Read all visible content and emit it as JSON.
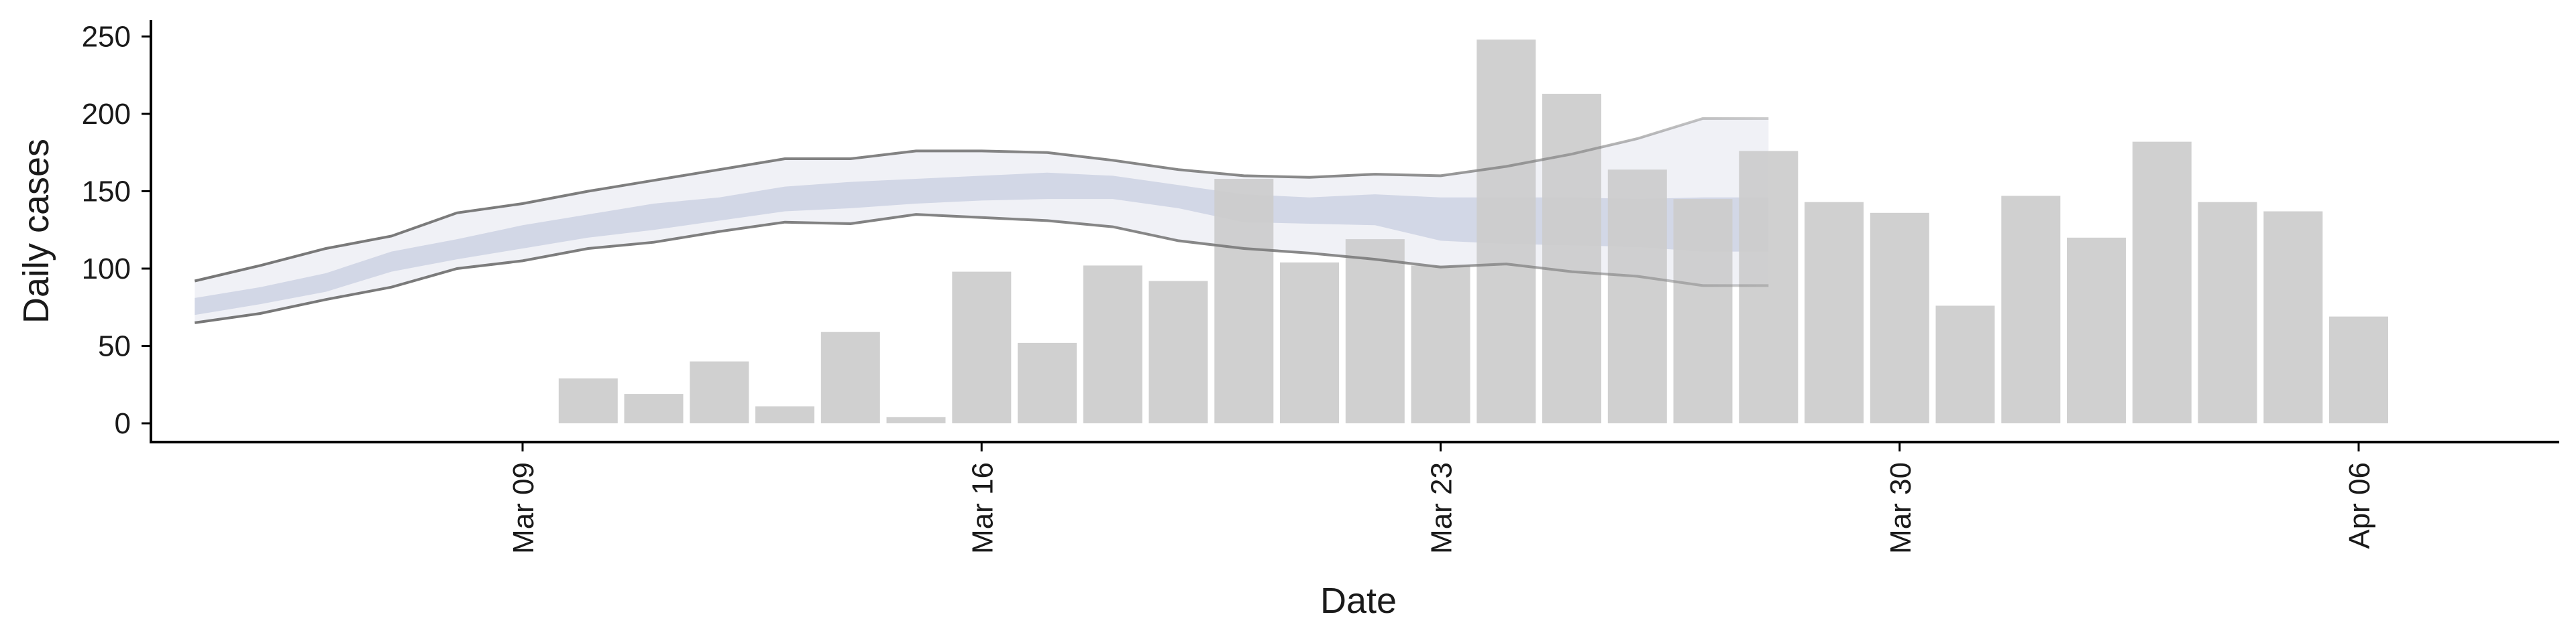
{
  "chart_data": {
    "type": "bar",
    "xlabel": "Date",
    "ylabel": "Daily cases",
    "ylim": [
      0,
      250
    ],
    "y_ticks": [
      0,
      50,
      100,
      150,
      200,
      250
    ],
    "x_ticks": [
      {
        "date": "2020-03-09",
        "label": "Mar 09"
      },
      {
        "date": "2020-03-16",
        "label": "Mar 16"
      },
      {
        "date": "2020-03-23",
        "label": "Mar 23"
      },
      {
        "date": "2020-03-30",
        "label": "Mar 30"
      },
      {
        "date": "2020-04-06",
        "label": "Apr 06"
      }
    ],
    "grid": false,
    "bar_color": "#cccccc",
    "bars": [
      {
        "date": "2020-03-10",
        "value": 29
      },
      {
        "date": "2020-03-11",
        "value": 19
      },
      {
        "date": "2020-03-12",
        "value": 40
      },
      {
        "date": "2020-03-13",
        "value": 11
      },
      {
        "date": "2020-03-14",
        "value": 59
      },
      {
        "date": "2020-03-15",
        "value": 4
      },
      {
        "date": "2020-03-16",
        "value": 98
      },
      {
        "date": "2020-03-17",
        "value": 52
      },
      {
        "date": "2020-03-18",
        "value": 102
      },
      {
        "date": "2020-03-19",
        "value": 92
      },
      {
        "date": "2020-03-20",
        "value": 158
      },
      {
        "date": "2020-03-21",
        "value": 104
      },
      {
        "date": "2020-03-22",
        "value": 119
      },
      {
        "date": "2020-03-23",
        "value": 102
      },
      {
        "date": "2020-03-24",
        "value": 248
      },
      {
        "date": "2020-03-25",
        "value": 213
      },
      {
        "date": "2020-03-26",
        "value": 164
      },
      {
        "date": "2020-03-27",
        "value": 145
      },
      {
        "date": "2020-03-28",
        "value": 176
      },
      {
        "date": "2020-03-29",
        "value": 143
      },
      {
        "date": "2020-03-30",
        "value": 136
      },
      {
        "date": "2020-03-31",
        "value": 76
      },
      {
        "date": "2020-04-01",
        "value": 147
      },
      {
        "date": "2020-04-02",
        "value": 120
      },
      {
        "date": "2020-04-03",
        "value": 182
      },
      {
        "date": "2020-04-04",
        "value": 143
      },
      {
        "date": "2020-04-05",
        "value": 137
      },
      {
        "date": "2020-04-06",
        "value": 69
      }
    ],
    "estimate_band": {
      "dates": [
        "2020-03-04",
        "2020-03-05",
        "2020-03-06",
        "2020-03-07",
        "2020-03-08",
        "2020-03-09",
        "2020-03-10",
        "2020-03-11",
        "2020-03-12",
        "2020-03-13",
        "2020-03-14",
        "2020-03-15",
        "2020-03-16",
        "2020-03-17",
        "2020-03-18",
        "2020-03-19",
        "2020-03-20",
        "2020-03-21",
        "2020-03-22",
        "2020-03-23",
        "2020-03-24",
        "2020-03-25",
        "2020-03-26",
        "2020-03-27",
        "2020-03-28"
      ],
      "outer_upper": [
        92,
        102,
        113,
        121,
        136,
        142,
        150,
        157,
        164,
        171,
        171,
        176,
        176,
        175,
        170,
        164,
        160,
        159,
        161,
        160,
        166,
        174,
        184,
        197,
        197
      ],
      "outer_lower": [
        65,
        71,
        80,
        88,
        100,
        105,
        113,
        117,
        124,
        130,
        129,
        135,
        133,
        131,
        127,
        118,
        113,
        110,
        106,
        101,
        103,
        98,
        95,
        89,
        89
      ],
      "mid_upper": [
        81,
        88,
        97,
        111,
        119,
        128,
        135,
        142,
        146,
        153,
        156,
        158,
        160,
        162,
        160,
        154,
        148,
        146,
        148,
        146,
        146,
        146,
        145,
        146,
        146
      ],
      "mid_lower": [
        70,
        77,
        85,
        98,
        106,
        113,
        120,
        125,
        131,
        137,
        139,
        142,
        144,
        145,
        145,
        139,
        130,
        129,
        128,
        118,
        116,
        115,
        114,
        111,
        111
      ],
      "band_outer_color": "#dde0ea",
      "band_mid_color": "#b9c1d8",
      "bound_line_color": "#777777"
    }
  }
}
